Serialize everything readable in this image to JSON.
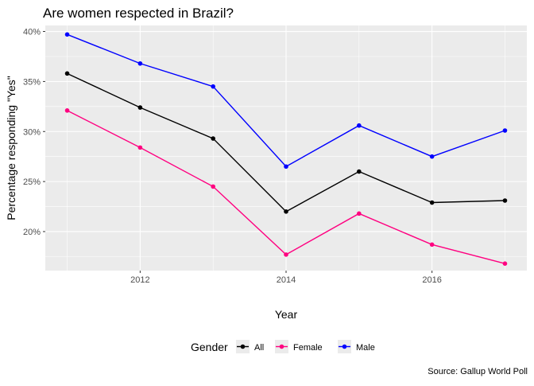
{
  "chart_data": {
    "type": "line",
    "title": "Are women respected in Brazil?",
    "xlabel": "Year",
    "ylabel": "Percentage responding \"Yes\"",
    "caption": "Source: Gallup World Poll",
    "x": [
      2011,
      2012,
      2013,
      2014,
      2015,
      2016,
      2017
    ],
    "xlim": [
      2010.7,
      2017.3
    ],
    "ylim": [
      16.1,
      40.6
    ],
    "x_ticks": [
      2012,
      2014,
      2016
    ],
    "x_tick_labels": [
      "2012",
      "2014",
      "2016"
    ],
    "y_ticks": [
      20,
      25,
      30,
      35,
      40
    ],
    "y_tick_labels": [
      "20%",
      "25%",
      "30%",
      "35%",
      "40%"
    ],
    "grid": true,
    "legend": {
      "title": "Gender",
      "position": "bottom",
      "labels": [
        "All",
        "Female",
        "Male"
      ]
    },
    "series": [
      {
        "name": "All",
        "color": "#000000",
        "values": [
          35.8,
          32.4,
          29.3,
          22.0,
          26.0,
          22.9,
          23.1
        ]
      },
      {
        "name": "Female",
        "color": "#ff0080",
        "values": [
          32.1,
          28.4,
          24.5,
          17.7,
          21.8,
          18.7,
          16.8
        ]
      },
      {
        "name": "Male",
        "color": "#0000ff",
        "values": [
          39.7,
          36.8,
          34.5,
          26.5,
          30.6,
          27.5,
          30.1
        ]
      }
    ],
    "panel_background": "#ebebeb",
    "grid_color": "#ffffff"
  }
}
